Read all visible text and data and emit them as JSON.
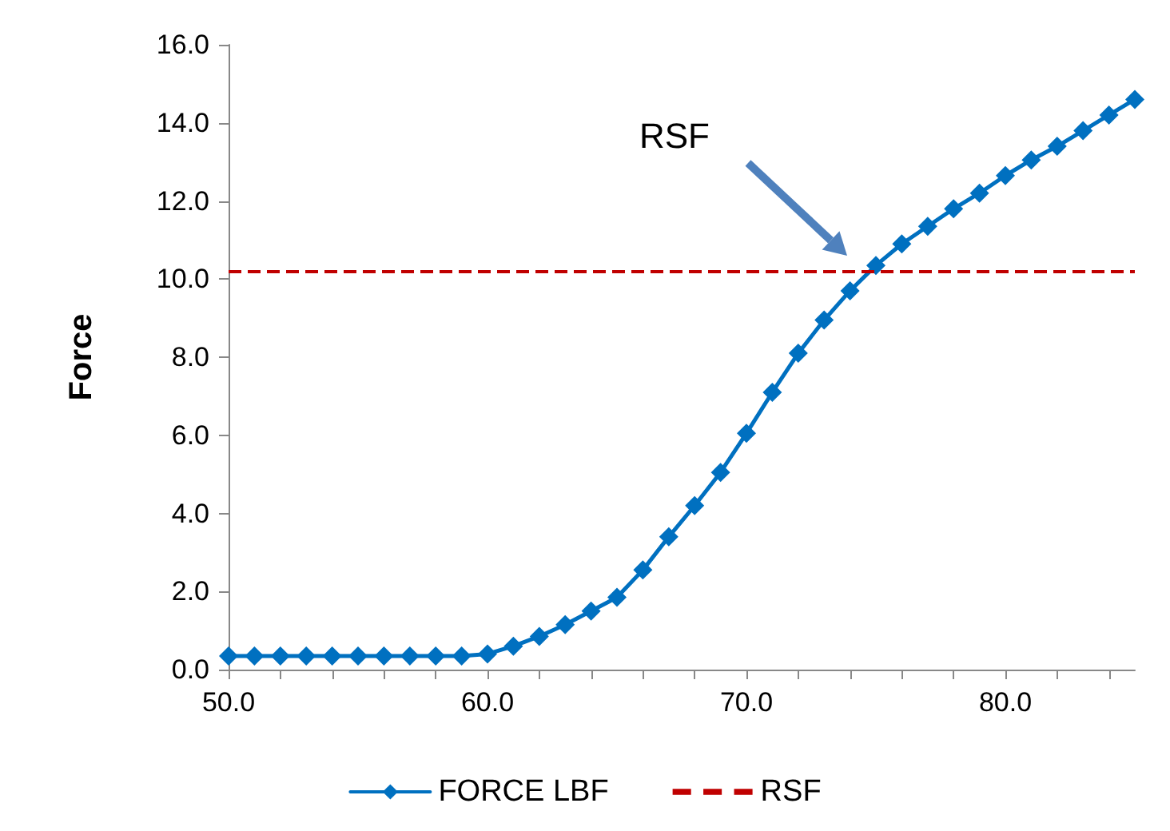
{
  "chart_data": {
    "type": "line",
    "ylabel": "Force",
    "x": [
      50,
      51,
      52,
      53,
      54,
      55,
      56,
      57,
      58,
      59,
      60,
      61,
      62,
      63,
      64,
      65,
      66,
      67,
      68,
      69,
      70,
      71,
      72,
      73,
      74,
      75,
      76,
      77,
      78,
      79,
      80,
      81,
      82,
      83,
      84,
      85
    ],
    "series": [
      {
        "name": "FORCE LBF",
        "color": "#0070c0",
        "values": [
          0.35,
          0.35,
          0.35,
          0.35,
          0.35,
          0.35,
          0.35,
          0.35,
          0.35,
          0.35,
          0.4,
          0.6,
          0.85,
          1.15,
          1.5,
          1.85,
          2.55,
          3.4,
          4.2,
          5.05,
          6.05,
          7.1,
          8.1,
          8.95,
          9.7,
          10.35,
          10.9,
          11.35,
          11.8,
          12.2,
          12.65,
          13.05,
          13.4,
          13.8,
          14.2,
          14.6
        ]
      }
    ],
    "marker": "diamond",
    "line_style": "solid",
    "ref_lines": [
      {
        "axis": "y",
        "value": 10.2,
        "label": "RSF",
        "color": "#c00000",
        "line_style": "dashed"
      }
    ],
    "annotations": [
      "RSF"
    ],
    "xlim": [
      50,
      85
    ],
    "xticks": [
      {
        "value": 50,
        "label": "50.0"
      },
      {
        "value": 52,
        "label": null
      },
      {
        "value": 54,
        "label": null
      },
      {
        "value": 56,
        "label": null
      },
      {
        "value": 58,
        "label": null
      },
      {
        "value": 60,
        "label": "60.0"
      },
      {
        "value": 62,
        "label": null
      },
      {
        "value": 64,
        "label": null
      },
      {
        "value": 66,
        "label": null
      },
      {
        "value": 68,
        "label": null
      },
      {
        "value": 70,
        "label": "70.0"
      },
      {
        "value": 72,
        "label": null
      },
      {
        "value": 74,
        "label": null
      },
      {
        "value": 76,
        "label": null
      },
      {
        "value": 78,
        "label": null
      },
      {
        "value": 80,
        "label": "80.0"
      },
      {
        "value": 82,
        "label": null
      },
      {
        "value": 84,
        "label": null
      }
    ],
    "ylim": [
      0,
      16
    ],
    "yticks": [
      {
        "value": 0,
        "label": "0.0"
      },
      {
        "value": 2,
        "label": "2.0"
      },
      {
        "value": 4,
        "label": "4.0"
      },
      {
        "value": 6,
        "label": "6.0"
      },
      {
        "value": 8,
        "label": "8.0"
      },
      {
        "value": 10,
        "label": "10.0"
      },
      {
        "value": 12,
        "label": "12.0"
      },
      {
        "value": 14,
        "label": "14.0"
      },
      {
        "value": 16,
        "label": "16.0"
      }
    ],
    "grid": false,
    "legend": "bottom"
  }
}
